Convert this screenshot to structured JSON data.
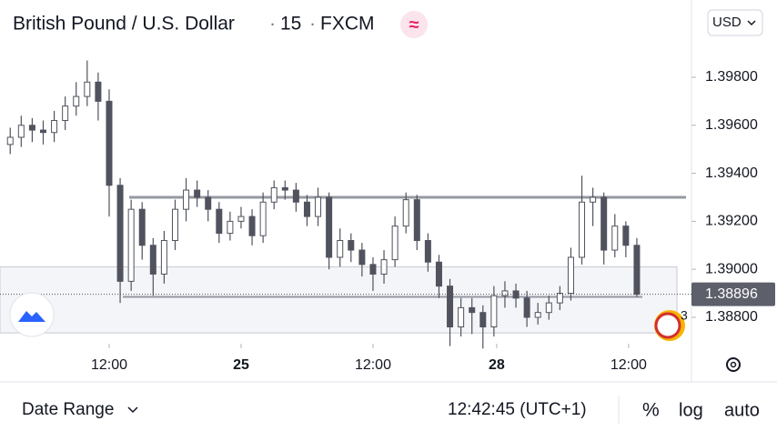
{
  "chart_data": {
    "type": "candlestick",
    "title": "British Pound / U.S. Dollar",
    "interval": "15",
    "exchange": "FXCM",
    "currency": "USD",
    "x": [
      -9,
      -8,
      -7,
      -6,
      -5,
      -4,
      -3,
      -2,
      -1,
      0,
      1,
      2,
      3,
      4,
      5,
      6,
      7,
      8,
      9,
      10,
      11,
      12,
      13,
      14,
      15,
      16,
      17,
      18,
      19,
      20,
      21,
      22,
      23,
      24,
      25,
      26,
      27,
      28,
      29,
      30,
      31,
      32,
      33,
      34,
      35,
      36,
      37,
      38,
      39,
      40,
      41,
      42,
      43,
      44,
      45,
      46,
      47,
      48
    ],
    "open": [
      1.3952,
      1.3955,
      1.396,
      1.3958,
      1.3957,
      1.3962,
      1.3968,
      1.3972,
      1.3978,
      1.397,
      1.3935,
      1.3895,
      1.3925,
      1.391,
      1.3898,
      1.3912,
      1.3925,
      1.3933,
      1.393,
      1.3925,
      1.3915,
      1.392,
      1.3922,
      1.3914,
      1.3928,
      1.3934,
      1.3933,
      1.3928,
      1.3922,
      1.393,
      1.3905,
      1.3912,
      1.3908,
      1.3902,
      1.3898,
      1.3904,
      1.3918,
      1.3929,
      1.3912,
      1.3903,
      1.3893,
      1.3876,
      1.3884,
      1.3882,
      1.3876,
      1.3889,
      1.3891,
      1.3888,
      1.388,
      1.3882,
      1.3886,
      1.389,
      1.3905,
      1.3928,
      1.393,
      1.3908,
      1.3918,
      1.391
    ],
    "high": [
      1.3959,
      1.3964,
      1.3963,
      1.3962,
      1.3966,
      1.3972,
      1.3978,
      1.3987,
      1.3982,
      1.3975,
      1.3938,
      1.3929,
      1.3928,
      1.3913,
      1.3916,
      1.3929,
      1.3938,
      1.3937,
      1.3933,
      1.3928,
      1.3924,
      1.3926,
      1.3925,
      1.3932,
      1.3937,
      1.3937,
      1.3936,
      1.3931,
      1.3934,
      1.3932,
      1.3917,
      1.3915,
      1.3911,
      1.3905,
      1.3908,
      1.3922,
      1.3932,
      1.3931,
      1.3915,
      1.3906,
      1.3896,
      1.3888,
      1.3888,
      1.3885,
      1.3893,
      1.3895,
      1.3894,
      1.3891,
      1.3886,
      1.3889,
      1.3893,
      1.3909,
      1.3939,
      1.3934,
      1.3932,
      1.3923,
      1.392,
      1.3913
    ],
    "low": [
      1.3948,
      1.3951,
      1.3953,
      1.3952,
      1.3953,
      1.3958,
      1.3964,
      1.3968,
      1.3962,
      1.3922,
      1.3886,
      1.3891,
      1.3904,
      1.3889,
      1.3894,
      1.3908,
      1.392,
      1.3926,
      1.392,
      1.3911,
      1.3912,
      1.3917,
      1.391,
      1.3911,
      1.3925,
      1.3929,
      1.3924,
      1.3918,
      1.3918,
      1.39,
      1.3901,
      1.3903,
      1.3897,
      1.3891,
      1.3894,
      1.3901,
      1.3915,
      1.3908,
      1.3899,
      1.3888,
      1.3868,
      1.3872,
      1.3873,
      1.3867,
      1.3872,
      1.3884,
      1.3884,
      1.3876,
      1.3877,
      1.3879,
      1.3883,
      1.3887,
      1.3902,
      1.3918,
      1.3902,
      1.3905,
      1.3905,
      1.38885
    ],
    "close": [
      1.3955,
      1.396,
      1.3958,
      1.3957,
      1.3962,
      1.3968,
      1.3972,
      1.3978,
      1.397,
      1.3935,
      1.3895,
      1.3925,
      1.391,
      1.3898,
      1.3912,
      1.3925,
      1.3933,
      1.393,
      1.3925,
      1.3915,
      1.392,
      1.3922,
      1.3914,
      1.3928,
      1.3934,
      1.3933,
      1.3928,
      1.3922,
      1.393,
      1.3905,
      1.3912,
      1.3908,
      1.3902,
      1.3898,
      1.3904,
      1.3918,
      1.3929,
      1.3912,
      1.3903,
      1.3893,
      1.3876,
      1.3884,
      1.3882,
      1.3876,
      1.3889,
      1.3891,
      1.3888,
      1.388,
      1.3882,
      1.3886,
      1.389,
      1.3905,
      1.3928,
      1.393,
      1.3908,
      1.3918,
      1.391,
      1.38896
    ],
    "xlim": [
      -9.93,
      52.97
    ],
    "xticks": [
      {
        "value": 0,
        "label": "12:00"
      },
      {
        "value": 12,
        "label": "25"
      },
      {
        "value": 24,
        "label": "12:00"
      },
      {
        "value": 35.25,
        "label": "28"
      },
      {
        "value": 47.25,
        "label": "12:00"
      }
    ],
    "ylim": [
      1.3869,
      1.40122
    ],
    "yticks": [
      {
        "value": 1.398,
        "label": "1.39800"
      },
      {
        "value": 1.396,
        "label": "1.39600"
      },
      {
        "value": 1.394,
        "label": "1.39400"
      },
      {
        "value": 1.392,
        "label": "1.39200"
      },
      {
        "value": 1.39,
        "label": "1.39000"
      },
      {
        "value": 1.388,
        "label": "1.38800"
      }
    ],
    "last_price": {
      "value": 1.38896,
      "label": "1.38896"
    },
    "levels": [
      1.393,
      1.38885
    ],
    "zone": [
      1.38735,
      1.3901
    ],
    "up_color": "#ffffff",
    "down_color": "#50535e",
    "wick_color": "#50535e"
  },
  "toolbar": {
    "date_range": "Date Range",
    "time": "12:42:45 (UTC+1)",
    "percent": "%",
    "log": "log",
    "auto": "auto"
  },
  "alerts_count": "3"
}
